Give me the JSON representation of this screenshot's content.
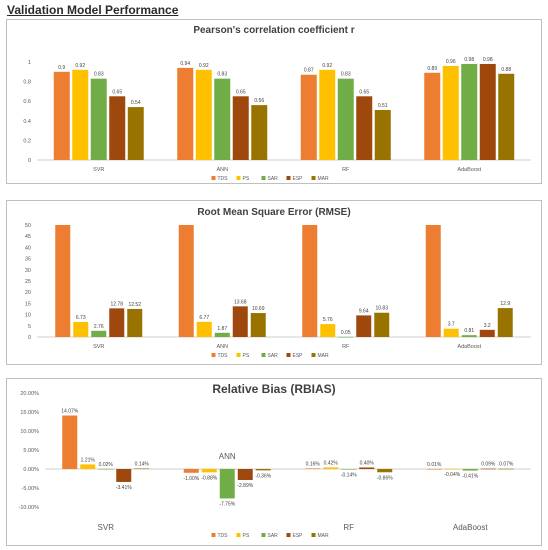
{
  "page_title": "Validation Model Performance",
  "colors": {
    "TDS": "#ed7d31",
    "PS": "#ffc000",
    "SAR": "#70ad47",
    "ESP": "#9e480e",
    "MAR": "#997300",
    "grid": "#d9d9d9",
    "axis": "#bfbfbf",
    "text": "#595959"
  },
  "chart_data": [
    {
      "id": "r",
      "type": "bar",
      "title": "Pearson's correlation coefficient r",
      "categories": [
        "SVR",
        "ANN",
        "RF",
        "AdaBoost"
      ],
      "ylim": [
        0,
        1
      ],
      "yticks": [
        "0",
        "0.2",
        "0.4",
        "0.6",
        "0.8",
        "1"
      ],
      "grid": false,
      "legend": "bottom",
      "series": [
        {
          "name": "TDS",
          "values": [
            0.9,
            0.94,
            0.87,
            0.89
          ],
          "labels": [
            "0.9",
            "0.94",
            "0.87",
            "0.89"
          ]
        },
        {
          "name": "PS",
          "values": [
            0.92,
            0.92,
            0.92,
            0.96
          ],
          "labels": [
            "0.92",
            "0.92",
            "0.92",
            "0.96"
          ]
        },
        {
          "name": "SAR",
          "values": [
            0.83,
            0.83,
            0.83,
            0.98
          ],
          "labels": [
            "0.83",
            "0.83",
            "0.83",
            "0.98"
          ]
        },
        {
          "name": "ESP",
          "values": [
            0.65,
            0.65,
            0.65,
            0.98
          ],
          "labels": [
            "0.65",
            "0.65",
            "0.65",
            "0.98"
          ]
        },
        {
          "name": "MAR",
          "values": [
            0.54,
            0.56,
            0.51,
            0.88
          ],
          "labels": [
            "0.54",
            "0.56",
            "0.51",
            "0.88"
          ]
        }
      ]
    },
    {
      "id": "rmse",
      "type": "bar",
      "title": "Root Mean Square Error (RMSE)",
      "categories": [
        "SVR",
        "ANN",
        "RF",
        "AdaBoost"
      ],
      "ylim": [
        0,
        50
      ],
      "yticks": [
        "0",
        "5",
        "10",
        "15",
        "20",
        "25",
        "30",
        "35",
        "40",
        "45",
        "50"
      ],
      "grid": false,
      "legend": "bottom",
      "series": [
        {
          "name": "TDS",
          "values": [
            50,
            50,
            50,
            50
          ],
          "labels": [
            "",
            "",
            "",
            ""
          ]
        },
        {
          "name": "PS",
          "values": [
            6.73,
            6.77,
            5.76,
            3.7
          ],
          "labels": [
            "6.73",
            "6.77",
            "5.76",
            "3.7"
          ]
        },
        {
          "name": "SAR",
          "values": [
            2.76,
            1.87,
            0.05,
            0.81
          ],
          "labels": [
            "2.76",
            "1.87",
            "0.05",
            "0.81"
          ]
        },
        {
          "name": "ESP",
          "values": [
            12.78,
            13.68,
            9.64,
            3.2
          ],
          "labels": [
            "12.78",
            "13.68",
            "9.64",
            "3.2"
          ]
        },
        {
          "name": "MAR",
          "values": [
            12.52,
            10.69,
            10.83,
            12.9
          ],
          "labels": [
            "12.52",
            "10.69",
            "10.83",
            "12.9"
          ]
        }
      ]
    },
    {
      "id": "rbias",
      "type": "bar",
      "title": "Relative Bias (RBIAS)",
      "categories": [
        "SVR",
        "ANN",
        "RF",
        "AdaBoost"
      ],
      "ylim": [
        -10,
        20
      ],
      "yticks": [
        "-10.00%",
        "-5.00%",
        "0.00%",
        "5.00%",
        "10.00%",
        "15.00%",
        "20.00%"
      ],
      "grid": false,
      "legend": "bottom",
      "series": [
        {
          "name": "TDS",
          "values": [
            14.07,
            -1.0,
            0.16,
            0.01
          ],
          "labels": [
            "14.07%",
            "-1.00%",
            "0.16%",
            "0.01%"
          ]
        },
        {
          "name": "PS",
          "values": [
            1.21,
            -0.88,
            0.42,
            -0.04
          ],
          "labels": [
            "1.21%",
            "-0.88%",
            "0.42%",
            "-0.04%"
          ]
        },
        {
          "name": "SAR",
          "values": [
            0.02,
            -7.75,
            -0.14,
            -0.41
          ],
          "labels": [
            "0.02%",
            "-7.75%",
            "-0.14%",
            "-0.41%"
          ]
        },
        {
          "name": "ESP",
          "values": [
            -3.41,
            -2.89,
            0.4,
            0.09
          ],
          "labels": [
            "-3.41%",
            "-2.89%",
            "0.40%",
            "0.09%"
          ]
        },
        {
          "name": "MAR",
          "values": [
            0.14,
            -0.36,
            -0.86,
            0.07
          ],
          "labels": [
            "0.14%",
            "-0.36%",
            "-0.86%",
            "0.07%"
          ]
        }
      ]
    }
  ]
}
